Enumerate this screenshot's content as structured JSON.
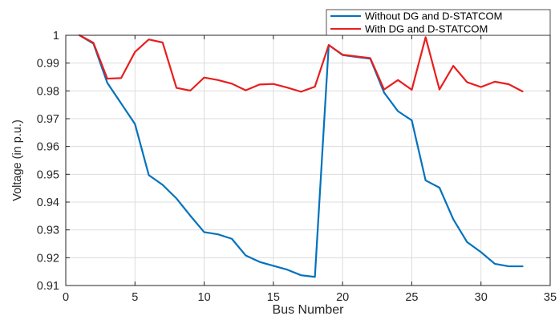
{
  "chart_data": {
    "type": "line",
    "title": "",
    "xlabel": "Bus Number",
    "ylabel": "Voltage (in p.u.)",
    "xlim": [
      0,
      35
    ],
    "ylim": [
      0.91,
      1.0
    ],
    "xticks": [
      0,
      5,
      10,
      15,
      20,
      25,
      30,
      35
    ],
    "yticks": [
      0.91,
      0.92,
      0.93,
      0.94,
      0.95,
      0.96,
      0.97,
      0.98,
      0.99,
      1.0
    ],
    "xtick_labels": [
      "0",
      "5",
      "10",
      "15",
      "20",
      "25",
      "30",
      "35"
    ],
    "ytick_labels": [
      "0.91",
      "0.92",
      "0.93",
      "0.94",
      "0.95",
      "0.96",
      "0.97",
      "0.98",
      "0.99",
      "1"
    ],
    "grid": true,
    "legend_position": "top-right",
    "x": [
      1,
      2,
      3,
      4,
      5,
      6,
      7,
      8,
      9,
      10,
      11,
      12,
      13,
      14,
      15,
      16,
      17,
      18,
      19,
      20,
      21,
      22,
      23,
      24,
      25,
      26,
      27,
      28,
      29,
      30,
      31,
      32,
      33
    ],
    "series": [
      {
        "name": "Without DG and D-STATCOM",
        "color": "#0072BD",
        "values": [
          1.0,
          0.997,
          0.9829,
          0.9755,
          0.9681,
          0.9497,
          0.9462,
          0.9413,
          0.9351,
          0.9292,
          0.9284,
          0.9268,
          0.9208,
          0.9185,
          0.9171,
          0.9157,
          0.9137,
          0.9131,
          0.9965,
          0.9929,
          0.9922,
          0.9916,
          0.9794,
          0.9727,
          0.9694,
          0.9478,
          0.9452,
          0.9338,
          0.9256,
          0.922,
          0.9178,
          0.9169,
          0.9169
        ]
      },
      {
        "name": "With DG and D-STATCOM",
        "color": "#E81E1E",
        "values": [
          1.0,
          0.9973,
          0.9844,
          0.9846,
          0.994,
          0.9985,
          0.9974,
          0.9811,
          0.9801,
          0.9848,
          0.9839,
          0.9826,
          0.9802,
          0.9823,
          0.9825,
          0.9812,
          0.9797,
          0.9815,
          0.9965,
          0.993,
          0.9924,
          0.9918,
          0.9805,
          0.9839,
          0.9804,
          0.9993,
          0.9805,
          0.989,
          0.9831,
          0.9814,
          0.9833,
          0.9824,
          0.9798
        ]
      }
    ]
  }
}
